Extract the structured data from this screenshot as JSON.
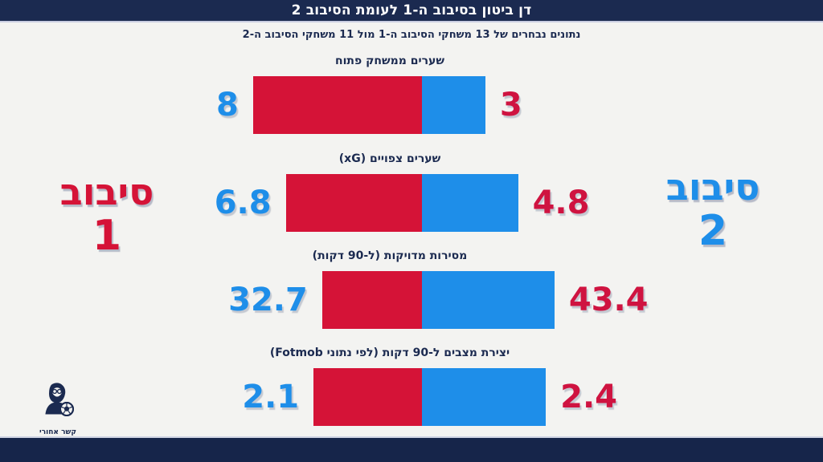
{
  "header": {
    "title": "דן ביטון בסיבוב ה-1 לעומת הסיבוב 2"
  },
  "subtitle": "נתונים נבחרים של 13 משחקי הסיבוב ה-1 מול 11 משחקי הסיבוב ה-2",
  "side_labels": {
    "left": {
      "word": "סיבוב",
      "number": "1"
    },
    "right": {
      "word": "סיבוב",
      "number": "2"
    }
  },
  "logo": {
    "caption": "קשר אחורי",
    "icon": "bearded-man-with-soccer-ball"
  },
  "colors": {
    "navy": "#1b2a50",
    "background": "#f3f3f1",
    "round1_red": "#d51337",
    "round2_blue": "#1e8ee9",
    "left_value_text": "#1e8ee9",
    "right_value_text": "#cf1340",
    "header_text": "#ffffff"
  },
  "chart_data": {
    "type": "bar",
    "subtype": "proportional-comparison-horizontal",
    "title": "דן ביטון בסיבוב ה-1 לעומת הסיבוב 2",
    "subtitle": "נתונים נבחרים של 13 משחקי הסיבוב ה-1 מול 11 משחקי הסיבוב ה-2",
    "categories": [
      "שערים ממשחק פתוח",
      "שערים צפויים (xG)",
      "מסירות מדויקות (ל-90 דקות)",
      "יצירת מצבים ל-90 דקות (לפי נתוני Fotmob)"
    ],
    "series": [
      {
        "name": "סיבוב 1",
        "color": "#d51337",
        "values": [
          8,
          6.8,
          32.7,
          2.1
        ]
      },
      {
        "name": "סיבוב 2",
        "color": "#1e8ee9",
        "values": [
          3,
          4.8,
          43.4,
          2.4
        ]
      }
    ],
    "value_labels": [
      {
        "left": "8",
        "right": "3"
      },
      {
        "left": "6.8",
        "right": "4.8"
      },
      {
        "left": "32.7",
        "right": "43.4"
      },
      {
        "left": "2.1",
        "right": "2.4"
      }
    ],
    "legend_position": "sides",
    "axis": "none",
    "grid": false
  }
}
